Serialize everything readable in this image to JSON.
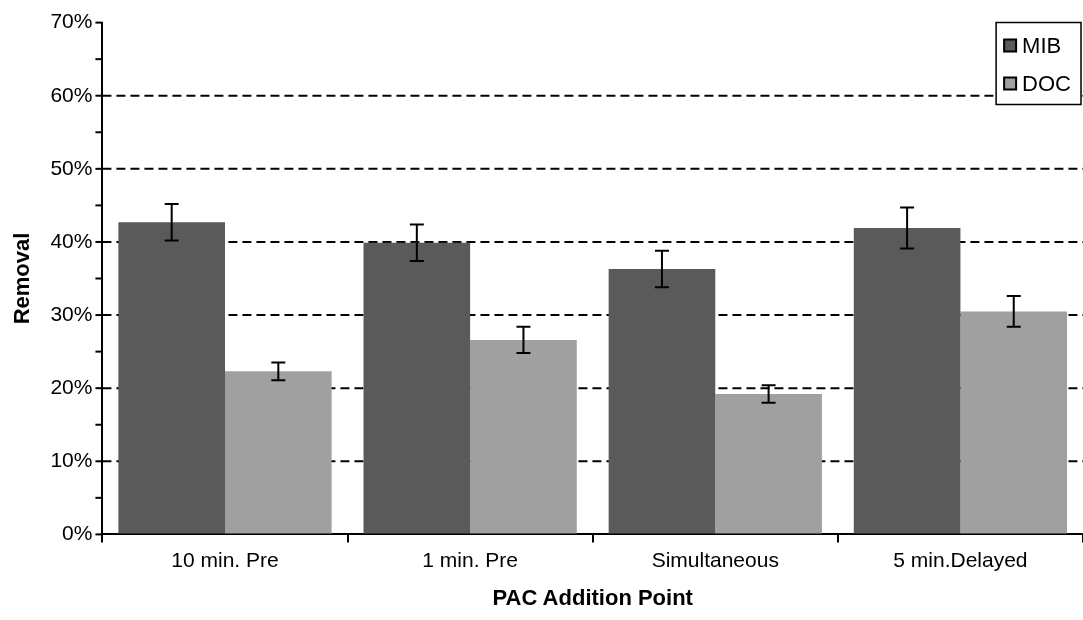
{
  "chart_data": {
    "type": "bar",
    "xlabel": "PAC Addition Point",
    "ylabel": "Removal",
    "categories": [
      "10 min. Pre",
      "1 min. Pre",
      "Simultaneous",
      "5 min.Delayed"
    ],
    "series": [
      {
        "name": "MIB",
        "color": "#5a5a5a",
        "values": [
          42.7,
          39.9,
          36.3,
          41.9
        ],
        "errors": [
          2.5,
          2.5,
          2.5,
          2.8
        ]
      },
      {
        "name": "DOC",
        "color": "#a0a0a0",
        "values": [
          22.3,
          26.6,
          19.2,
          30.5
        ],
        "errors": [
          1.2,
          1.8,
          1.2,
          2.1
        ]
      }
    ],
    "ylim": [
      0,
      70
    ],
    "yticks": [
      {
        "value": 0,
        "label": "0%"
      },
      {
        "value": 5,
        "label": null
      },
      {
        "value": 10,
        "label": "10%"
      },
      {
        "value": 15,
        "label": null
      },
      {
        "value": 20,
        "label": "20%"
      },
      {
        "value": 25,
        "label": null
      },
      {
        "value": 30,
        "label": "30%"
      },
      {
        "value": 35,
        "label": null
      },
      {
        "value": 40,
        "label": "40%"
      },
      {
        "value": 45,
        "label": null
      },
      {
        "value": 50,
        "label": "50%"
      },
      {
        "value": 55,
        "label": null
      },
      {
        "value": 60,
        "label": "60%"
      },
      {
        "value": 65,
        "label": null
      },
      {
        "value": 70,
        "label": "70%"
      }
    ],
    "grid": "y",
    "legend": "top right"
  }
}
